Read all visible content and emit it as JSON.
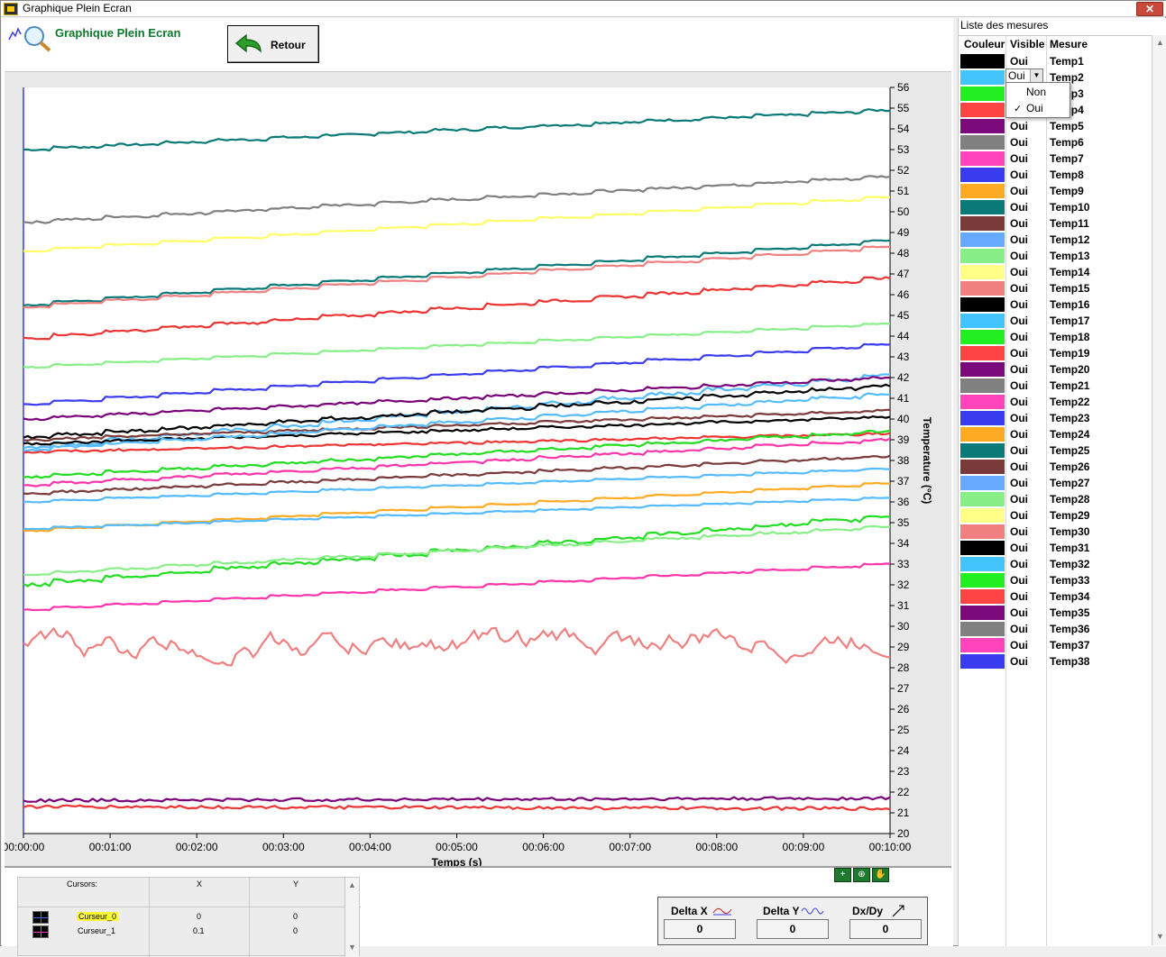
{
  "window": {
    "title": "Graphique Plein Ecran",
    "close_label": "✕"
  },
  "header": {
    "page_title": "Graphique Plein Ecran",
    "retour_label": "Retour"
  },
  "chart_data": {
    "type": "line",
    "ylabel": "Temperature (°C)",
    "xlabel": "Temps (s)",
    "ylim": [
      20,
      56
    ],
    "y_ticks": [
      "56",
      "55",
      "54",
      "53",
      "52",
      "51",
      "50",
      "49",
      "48",
      "47",
      "46",
      "45",
      "44",
      "43",
      "42",
      "41",
      "40",
      "39",
      "38",
      "37",
      "36",
      "35",
      "34",
      "33",
      "32",
      "31",
      "30",
      "29",
      "28",
      "27",
      "26",
      "25",
      "24",
      "23",
      "22",
      "21",
      "20"
    ],
    "x_ticks": [
      "00:00:00",
      "00:01:00",
      "00:02:00",
      "00:03:00",
      "00:04:00",
      "00:05:00",
      "00:06:00",
      "00:07:00",
      "00:08:00",
      "00:09:00",
      "00:10:00"
    ],
    "x_range_min": [
      0,
      10
    ],
    "series": [
      {
        "color": "#0a7a78",
        "start": 53.0,
        "end": 54.9,
        "noise": 0.1
      },
      {
        "color": "#808080",
        "start": 49.5,
        "end": 51.7,
        "noise": 0.1
      },
      {
        "color": "#ffff66",
        "start": 48.1,
        "end": 50.7,
        "noise": 0.05
      },
      {
        "color": "#0a7a78",
        "start": 45.5,
        "end": 48.6,
        "noise": 0.05
      },
      {
        "color": "#f08080",
        "start": 45.4,
        "end": 48.3,
        "noise": 0.05
      },
      {
        "color": "#ee3333",
        "start": 43.9,
        "end": 46.8,
        "noise": 0.1
      },
      {
        "color": "#88ee88",
        "start": 42.5,
        "end": 44.6,
        "noise": 0.05
      },
      {
        "color": "#3a3aee",
        "start": 40.7,
        "end": 43.6,
        "noise": 0.05
      },
      {
        "color": "#55bbff",
        "start": 38.6,
        "end": 42.1,
        "noise": 0.15
      },
      {
        "color": "#7a007a",
        "start": 40.0,
        "end": 42.0,
        "noise": 0.1
      },
      {
        "color": "#000000",
        "start": 39.1,
        "end": 41.6,
        "noise": 0.15
      },
      {
        "color": "#000000",
        "start": 38.8,
        "end": 40.1,
        "noise": 0.1
      },
      {
        "color": "#7a3a3a",
        "start": 39.0,
        "end": 40.4,
        "noise": 0.1
      },
      {
        "color": "#55bbff",
        "start": 38.5,
        "end": 41.2,
        "noise": 0.1
      },
      {
        "color": "#ee3333",
        "start": 38.4,
        "end": 39.3,
        "noise": 0.1
      },
      {
        "color": "#22dd22",
        "start": 37.2,
        "end": 39.4,
        "noise": 0.1
      },
      {
        "color": "#ff33aa",
        "start": 36.8,
        "end": 39.0,
        "noise": 0.1
      },
      {
        "color": "#7a3a3a",
        "start": 36.4,
        "end": 38.2,
        "noise": 0.1
      },
      {
        "color": "#55bbff",
        "start": 36.0,
        "end": 37.6,
        "noise": 0.05
      },
      {
        "color": "#ffaa22",
        "start": 34.6,
        "end": 36.9,
        "noise": 0.05
      },
      {
        "color": "#55bbff",
        "start": 34.7,
        "end": 36.2,
        "noise": 0.05
      },
      {
        "color": "#22dd22",
        "start": 32.0,
        "end": 35.3,
        "noise": 0.15
      },
      {
        "color": "#88ee88",
        "start": 32.5,
        "end": 34.8,
        "noise": 0.1
      },
      {
        "color": "#ff33aa",
        "start": 30.8,
        "end": 33.0,
        "noise": 0.05
      },
      {
        "color": "#f08080",
        "start": 29.0,
        "end": 29.3,
        "noise": 0.7
      },
      {
        "color": "#7a007a",
        "start": 21.6,
        "end": 21.7,
        "noise": 0.15
      },
      {
        "color": "#ee3333",
        "start": 21.3,
        "end": 21.2,
        "noise": 0.15
      }
    ]
  },
  "cursors": {
    "header_cursors": "Cursors:",
    "header_x": "X",
    "header_y": "Y",
    "rows": [
      {
        "name": "Curseur_0",
        "x": "0",
        "y": "0"
      },
      {
        "name": "Curseur_1",
        "x": "0.1",
        "y": "0"
      }
    ]
  },
  "delta": {
    "dx_label": "Delta X",
    "dy_label": "Delta Y",
    "dxdy_label": "Dx/Dy",
    "dx_value": "0",
    "dy_value": "0",
    "dxdy_value": "0"
  },
  "measures": {
    "title": "Liste des mesures",
    "headers": {
      "couleur": "Couleur",
      "visible": "Visible",
      "mesure": "Mesure"
    },
    "rows": [
      {
        "color": "#000000",
        "visible": "Oui",
        "name": "Temp1"
      },
      {
        "color": "#44c4ff",
        "visible": "Oui",
        "name": "Temp2"
      },
      {
        "color": "#22ee22",
        "visible": "Oui",
        "name": "Temp3"
      },
      {
        "color": "#ff4444",
        "visible": "Oui",
        "name": "Temp4"
      },
      {
        "color": "#7a0a7a",
        "visible": "Oui",
        "name": "Temp5"
      },
      {
        "color": "#808080",
        "visible": "Oui",
        "name": "Temp6"
      },
      {
        "color": "#ff44bb",
        "visible": "Oui",
        "name": "Temp7"
      },
      {
        "color": "#3a3aee",
        "visible": "Oui",
        "name": "Temp8"
      },
      {
        "color": "#ffaa22",
        "visible": "Oui",
        "name": "Temp9"
      },
      {
        "color": "#0a7a78",
        "visible": "Oui",
        "name": "Temp10"
      },
      {
        "color": "#7a3a3a",
        "visible": "Oui",
        "name": "Temp11"
      },
      {
        "color": "#66aaff",
        "visible": "Oui",
        "name": "Temp12"
      },
      {
        "color": "#88ee88",
        "visible": "Oui",
        "name": "Temp13"
      },
      {
        "color": "#ffff88",
        "visible": "Oui",
        "name": "Temp14"
      },
      {
        "color": "#f08080",
        "visible": "Oui",
        "name": "Temp15"
      },
      {
        "color": "#000000",
        "visible": "Oui",
        "name": "Temp16"
      },
      {
        "color": "#44c4ff",
        "visible": "Oui",
        "name": "Temp17"
      },
      {
        "color": "#22ee22",
        "visible": "Oui",
        "name": "Temp18"
      },
      {
        "color": "#ff4444",
        "visible": "Oui",
        "name": "Temp19"
      },
      {
        "color": "#7a0a7a",
        "visible": "Oui",
        "name": "Temp20"
      },
      {
        "color": "#808080",
        "visible": "Oui",
        "name": "Temp21"
      },
      {
        "color": "#ff44bb",
        "visible": "Oui",
        "name": "Temp22"
      },
      {
        "color": "#3a3aee",
        "visible": "Oui",
        "name": "Temp23"
      },
      {
        "color": "#ffaa22",
        "visible": "Oui",
        "name": "Temp24"
      },
      {
        "color": "#0a7a78",
        "visible": "Oui",
        "name": "Temp25"
      },
      {
        "color": "#7a3a3a",
        "visible": "Oui",
        "name": "Temp26"
      },
      {
        "color": "#66aaff",
        "visible": "Oui",
        "name": "Temp27"
      },
      {
        "color": "#88ee88",
        "visible": "Oui",
        "name": "Temp28"
      },
      {
        "color": "#ffff88",
        "visible": "Oui",
        "name": "Temp29"
      },
      {
        "color": "#f08080",
        "visible": "Oui",
        "name": "Temp30"
      },
      {
        "color": "#000000",
        "visible": "Oui",
        "name": "Temp31"
      },
      {
        "color": "#44c4ff",
        "visible": "Oui",
        "name": "Temp32"
      },
      {
        "color": "#22ee22",
        "visible": "Oui",
        "name": "Temp33"
      },
      {
        "color": "#ff4444",
        "visible": "Oui",
        "name": "Temp34"
      },
      {
        "color": "#7a0a7a",
        "visible": "Oui",
        "name": "Temp35"
      },
      {
        "color": "#808080",
        "visible": "Oui",
        "name": "Temp36"
      },
      {
        "color": "#ff44bb",
        "visible": "Oui",
        "name": "Temp37"
      },
      {
        "color": "#3a3aee",
        "visible": "Oui",
        "name": "Temp38"
      }
    ]
  },
  "dropdown": {
    "current": "Oui",
    "options": [
      "Non",
      "Oui"
    ],
    "checked": "✓"
  }
}
